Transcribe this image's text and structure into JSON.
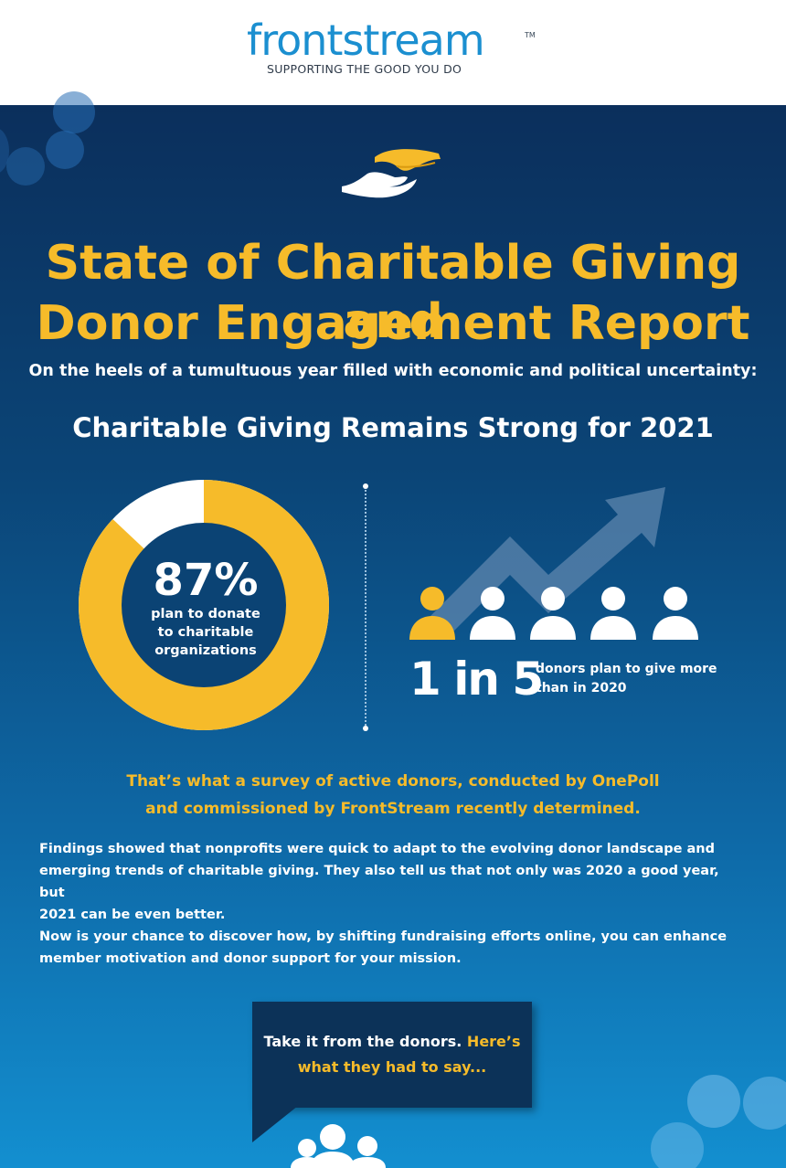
{
  "header": {
    "logo": {
      "wordmark": "frontstream",
      "trademark": "TM",
      "tagline": "SUPPORTING THE GOOD YOU DO"
    }
  },
  "hero": {
    "icon": "helping-hands-icon",
    "title_line1": "State of Charitable Giving and",
    "title_line2": "Donor Engagement Report",
    "subtitle": "On the heels of a tumultuous year filled with economic and political uncertainty:"
  },
  "stats": {
    "heading": "Charitable Giving Remains Strong for 2021",
    "donut": {
      "value_percent": 87,
      "value_text": "87%",
      "label_line1": "plan to donate",
      "label_line2": "to charitable",
      "label_line3": "organizations"
    },
    "ratio": {
      "highlighted": 1,
      "total": 5,
      "value_text": "1 in 5",
      "label_line1": "donors plan to give more",
      "label_line2": "than in 2020",
      "icons": [
        "person-icon",
        "trend-up-arrow-icon"
      ]
    }
  },
  "survey": {
    "line1": "That’s what a survey of active donors, conducted by OnePoll",
    "line2": "and commissioned by FrontStream recently determined."
  },
  "body": {
    "para1_line1": "Findings showed that nonprofits were quick to adapt to the evolving donor landscape and",
    "para1_line2": "emerging trends of charitable giving. They also tell us that not only was 2020 a good year, but",
    "para1_line3": "2021 can be even better.",
    "para2_line1": "Now is your chance to discover how, by shifting fundraising efforts online, you can enhance",
    "para2_line2": "member motivation and donor support for your mission."
  },
  "quote_bubble": {
    "text_white": "Take it from the donors.",
    "text_highlight_1": "Here’s",
    "text_highlight_2": "what they had to say..."
  },
  "colors": {
    "brand_blue": "#1b8fd0",
    "accent_gold": "#f6bb2a",
    "navy": "#0b2f5c",
    "white": "#ffffff"
  }
}
